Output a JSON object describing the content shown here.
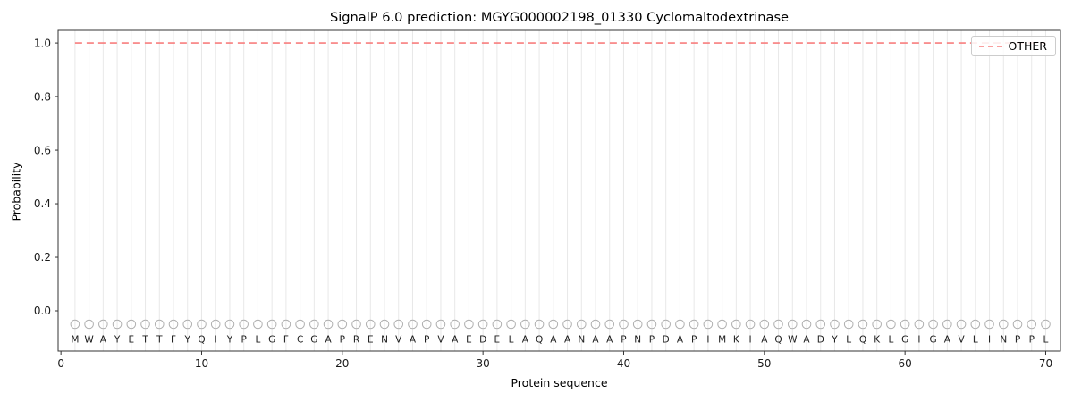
{
  "figure": {
    "title": "SignalP 6.0 prediction: MGYG000002198_01330 Cyclomaltodextrinase",
    "xlabel": "Protein sequence",
    "ylabel": "Probability"
  },
  "legend": {
    "entries": [
      {
        "label": "OTHER",
        "color": "#f87e7e",
        "linestyle": "dashed"
      }
    ]
  },
  "chart_data": {
    "type": "line",
    "title": "SignalP 6.0 prediction: MGYG000002198_01330 Cyclomaltodextrinase",
    "xlabel": "Protein sequence",
    "ylabel": "Probability",
    "xlim": [
      -0.2,
      71.05
    ],
    "ylim": [
      -0.15,
      1.047
    ],
    "x_ticks": [
      0,
      10,
      20,
      30,
      40,
      50,
      60,
      70
    ],
    "y_ticks": [
      0.0,
      0.2,
      0.4,
      0.6,
      0.8,
      1.0
    ],
    "grid": {
      "axis": "x",
      "per_residue": true,
      "color": "#e8e8e8"
    },
    "legend_position": "upper right",
    "sequence": "MWAYETTFYQIYPLGFCGAPRENVAPVAEDELAQAANAAPNPDAPIMKIAQWADYLQKLGIGAVLINPPL",
    "sequence_length": 70,
    "sequence_marker_y": -0.05,
    "sequence_letter_y": -0.107,
    "marker_color": "#b0b0b0",
    "frame_color": "#333333",
    "text_color": "#1a1a1a",
    "series": [
      {
        "name": "OTHER",
        "color": "#f87e7e",
        "linestyle": "dashed",
        "x_start": 1,
        "x_end": 70,
        "y_constant": 1.0
      }
    ]
  }
}
